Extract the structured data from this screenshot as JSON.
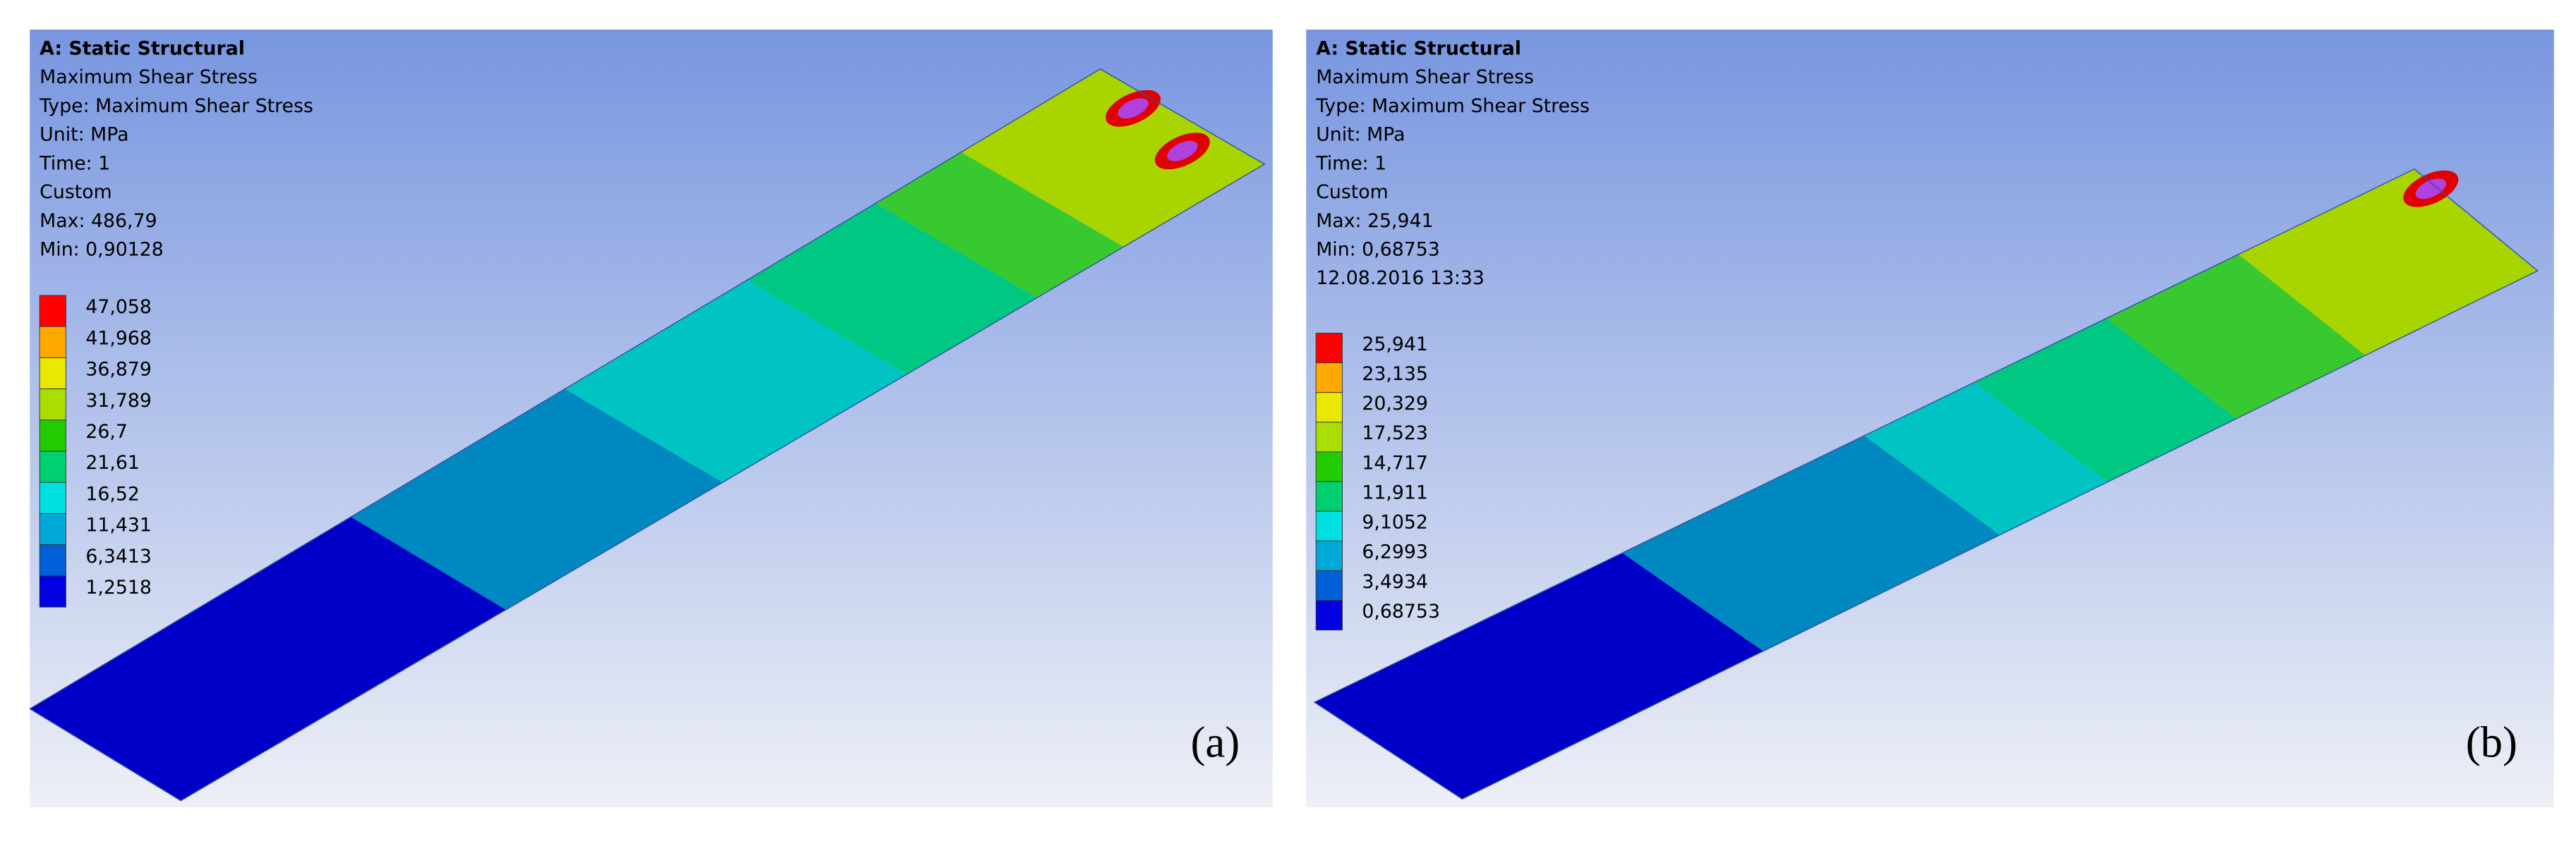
{
  "panels": [
    {
      "title": "A: Static Structural",
      "lines": [
        "Maximum Shear Stress",
        "Type: Maximum Shear Stress",
        "Unit: MPa",
        "Time: 1",
        "Custom",
        "Max: 486,79",
        "Min: 0,90128"
      ],
      "legend": [
        "47,058",
        "41,968",
        "36,879",
        "31,789",
        "26,7",
        "21,61",
        "16,52",
        "11,431",
        "6,3413",
        "1,2518"
      ],
      "label": "(a)"
    },
    {
      "title": "A: Static Structural",
      "lines": [
        "Maximum Shear Stress",
        "Type: Maximum Shear Stress",
        "Unit: MPa",
        "Time: 1",
        "Custom",
        "Max: 25,941",
        "Min: 0,68753",
        "12.08.2016 13:33"
      ],
      "legend": [
        "25,941",
        "23,135",
        "20,329",
        "17,523",
        "14,717",
        "11,911",
        "9,1052",
        "6,2993",
        "3,4934",
        "0,68753"
      ],
      "label": "(b)"
    }
  ]
}
